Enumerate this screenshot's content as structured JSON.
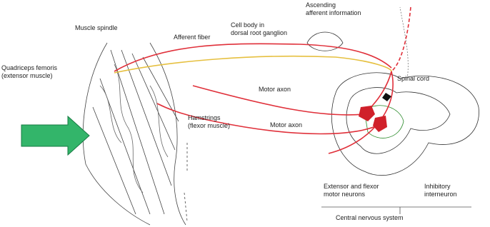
{
  "labels": [
    {
      "lines": [
        "Muscle spindle"
      ]
    },
    {
      "lines": [
        "Quadriceps femoris",
        "(extensor muscle)"
      ]
    },
    {
      "lines": [
        "Afferent fiber"
      ]
    },
    {
      "lines": [
        "Cell body in",
        "dorsal root ganglion"
      ]
    },
    {
      "lines": [
        "Ascending",
        "afferent information"
      ]
    },
    {
      "lines": [
        "Spinal cord"
      ]
    },
    {
      "lines": [
        "Motor axon"
      ]
    },
    {
      "lines": [
        "Motor axon"
      ]
    },
    {
      "lines": [
        "Hamstrings",
        "(flexor muscle)"
      ]
    },
    {
      "lines": [
        "Extensor and flexor",
        "motor neurons"
      ]
    },
    {
      "lines": [
        "Inhibitory",
        "interneuron"
      ]
    },
    {
      "lines": [
        "Central nervous system"
      ]
    }
  ]
}
